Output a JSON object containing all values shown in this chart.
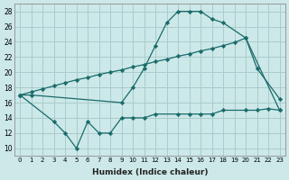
{
  "xlabel": "Humidex (Indice chaleur)",
  "bg_color": "#cce8e8",
  "grid_color": "#aacccc",
  "line_color": "#1a6b6b",
  "xlim": [
    -0.5,
    23.5
  ],
  "ylim": [
    9,
    29
  ],
  "yticks": [
    10,
    12,
    14,
    16,
    18,
    20,
    22,
    24,
    26,
    28
  ],
  "xticks": [
    0,
    1,
    2,
    3,
    4,
    5,
    6,
    7,
    8,
    9,
    10,
    11,
    12,
    13,
    14,
    15,
    16,
    17,
    18,
    19,
    20,
    21,
    22,
    23
  ],
  "series1": {
    "x": [
      0,
      1,
      9,
      10,
      11,
      12,
      13,
      14,
      15,
      16,
      17,
      18,
      20,
      21,
      23
    ],
    "y": [
      17,
      17,
      16,
      18,
      20.5,
      23.5,
      26.5,
      28,
      28,
      28,
      27,
      26.5,
      24.5,
      20.5,
      16.5
    ]
  },
  "series2": {
    "x": [
      0,
      1,
      2,
      3,
      4,
      5,
      6,
      7,
      8,
      9,
      10,
      11,
      12,
      13,
      14,
      15,
      16,
      17,
      18,
      19,
      20,
      23
    ],
    "y": [
      17,
      17.4,
      17.8,
      18.2,
      18.6,
      19.0,
      19.3,
      19.7,
      20.0,
      20.3,
      20.7,
      21.0,
      21.4,
      21.7,
      22.1,
      22.4,
      22.8,
      23.1,
      23.5,
      23.9,
      24.5,
      15
    ]
  },
  "series3": {
    "x": [
      0,
      3,
      4,
      5,
      6,
      7,
      8,
      9,
      10,
      11,
      12,
      14,
      15,
      16,
      17,
      18,
      20,
      21,
      22,
      23
    ],
    "y": [
      17,
      13.5,
      12,
      10,
      13.5,
      12,
      12,
      14,
      14,
      14,
      14.5,
      14.5,
      14.5,
      14.5,
      14.5,
      15,
      15,
      15,
      15.2,
      15
    ]
  }
}
